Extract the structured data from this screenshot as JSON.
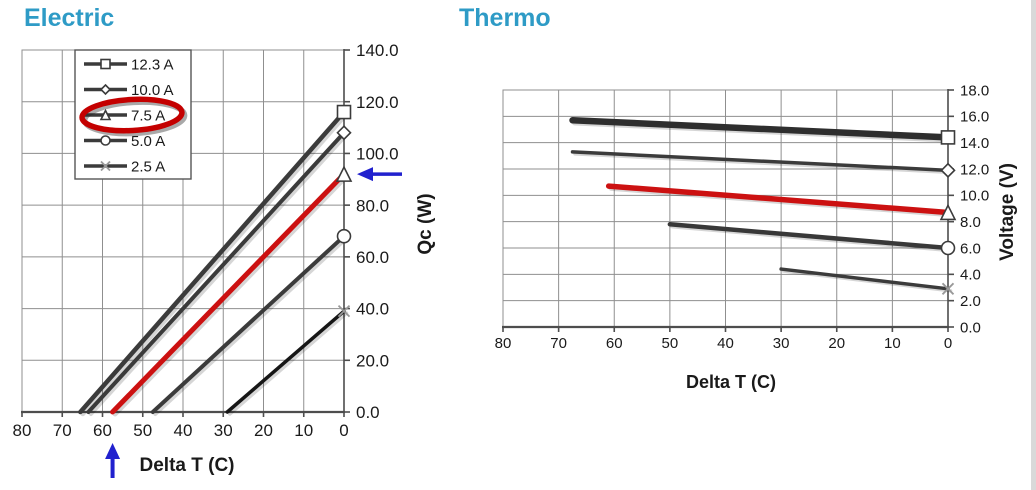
{
  "page": {
    "background": "#ffffff",
    "title_color": "#2E9BC6"
  },
  "chart_data": [
    {
      "type": "line",
      "title": "Electric",
      "xlabel": "Delta T (C)",
      "ylabel": "Qc (W)",
      "xlim": [
        80,
        0
      ],
      "ylim": [
        0,
        140
      ],
      "x_reversed": true,
      "grid": true,
      "y_axis_side": "right",
      "x_ticks": [
        "80",
        "70",
        "60",
        "50",
        "40",
        "30",
        "20",
        "10",
        "0"
      ],
      "y_ticks": [
        "0.0",
        "20.0",
        "40.0",
        "60.0",
        "80.0",
        "100.0",
        "120.0",
        "140.0"
      ],
      "legend": {
        "position": "top-left",
        "entries": [
          "12.3 A",
          "10.0 A",
          "7.5 A",
          "5.0 A",
          "2.5 A"
        ]
      },
      "series": [
        {
          "name": "12.3 A",
          "marker": "square",
          "color": "#3b3b3b",
          "width": 4.5,
          "points": [
            [
              65.5,
              0
            ],
            [
              0,
              116
            ]
          ]
        },
        {
          "name": "10.0 A",
          "marker": "diamond",
          "color": "#3b3b3b",
          "width": 4,
          "points": [
            [
              63.5,
              0
            ],
            [
              0,
              108
            ]
          ]
        },
        {
          "name": "7.5 A",
          "marker": "triangle",
          "color": "#CC1111",
          "width": 5,
          "points": [
            [
              57.5,
              0
            ],
            [
              0,
              92
            ]
          ]
        },
        {
          "name": "5.0 A",
          "marker": "circle",
          "color": "#3b3b3b",
          "width": 4,
          "points": [
            [
              47.5,
              0
            ],
            [
              0,
              68
            ]
          ]
        },
        {
          "name": "2.5 A",
          "marker": "x",
          "color": "#161616",
          "width": 3.5,
          "points": [
            [
              29,
              0
            ],
            [
              0,
              39
            ]
          ]
        }
      ],
      "annotations": [
        {
          "type": "ellipse-highlight",
          "target_legend_index": 2,
          "label": "7.5 A highlighted",
          "color": "#C40000"
        },
        {
          "type": "arrow-left",
          "y": 92,
          "color": "#2121CE"
        },
        {
          "type": "arrow-up",
          "x": 57.5,
          "color": "#2121CE"
        }
      ]
    },
    {
      "type": "line",
      "title": "Thermo",
      "xlabel": "Delta T (C)",
      "ylabel": "Voltage (V)",
      "xlim": [
        80,
        0
      ],
      "ylim": [
        0,
        18
      ],
      "x_reversed": true,
      "grid": true,
      "y_axis_side": "right",
      "x_ticks": [
        "80",
        "70",
        "60",
        "50",
        "40",
        "30",
        "20",
        "10",
        "0"
      ],
      "y_ticks": [
        "0.0",
        "2.0",
        "4.0",
        "6.0",
        "8.0",
        "10.0",
        "12.0",
        "14.0",
        "16.0",
        "18.0"
      ],
      "legend": null,
      "series": [
        {
          "name": "12.3 A",
          "marker": "square",
          "color": "#2e2e2e",
          "width": 6.5,
          "points": [
            [
              67.5,
              15.7
            ],
            [
              0,
              14.4
            ]
          ]
        },
        {
          "name": "10.0 A",
          "marker": "diamond",
          "color": "#3b3b3b",
          "width": 3.5,
          "points": [
            [
              67.5,
              13.3
            ],
            [
              0,
              11.9
            ]
          ]
        },
        {
          "name": "7.5 A",
          "marker": "triangle",
          "color": "#CC1111",
          "width": 5.5,
          "points": [
            [
              61,
              10.7
            ],
            [
              0,
              8.7
            ]
          ]
        },
        {
          "name": "5.0 A",
          "marker": "circle",
          "color": "#383838",
          "width": 4.5,
          "points": [
            [
              50,
              7.8
            ],
            [
              0,
              6.0
            ]
          ]
        },
        {
          "name": "2.5 A",
          "marker": "x",
          "color": "#3b3b3b",
          "width": 3.5,
          "points": [
            [
              30,
              4.4
            ],
            [
              0,
              2.9
            ]
          ]
        }
      ],
      "annotations": []
    }
  ],
  "style_colors": {
    "grid": "#8f8f8f",
    "axis": "#4d4d4d",
    "marker_stroke": "#3b3b3b",
    "x_marker_stroke": "#999999",
    "highlight_red": "#C40000",
    "annotation_blue": "#2121CE"
  }
}
